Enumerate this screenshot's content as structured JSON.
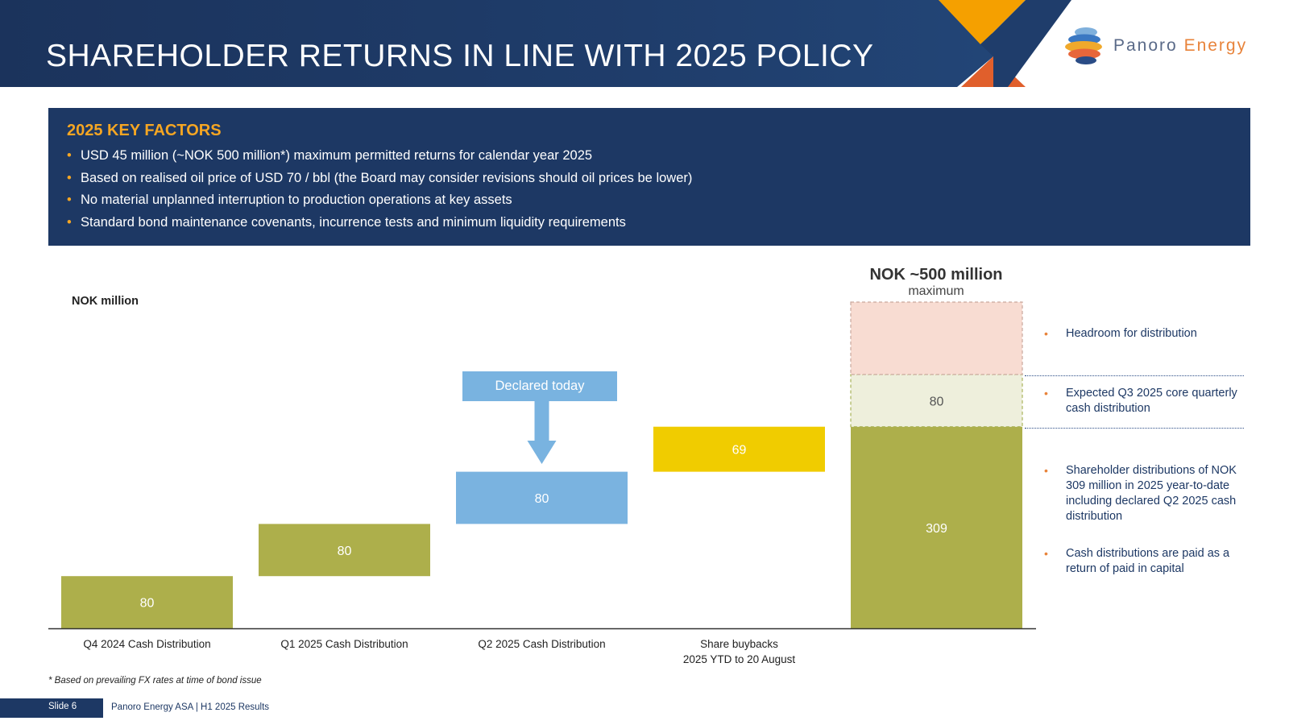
{
  "header": {
    "title": "SHAREHOLDER RETURNS IN LINE WITH 2025 POLICY",
    "logo_name": "Panoro",
    "logo_energy": "Energy"
  },
  "factors": {
    "title": "2025 KEY FACTORS",
    "bullet": "•",
    "items": [
      "USD 45 million (~NOK 500 million*) maximum permitted returns for calendar year 2025",
      "Based on realised oil price of USD 70 / bbl (the Board may consider revisions should oil prices be lower)",
      "No material unplanned interruption to production operations at key assets",
      "Standard bond maintenance covenants, incurrence tests and minimum liquidity requirements"
    ]
  },
  "chart_data": {
    "type": "bar",
    "subtype": "waterfall",
    "ylabel": "NOK million",
    "categories": [
      [
        "Q4 2024 Cash Distribution"
      ],
      [
        "Q1 2025 Cash Distribution"
      ],
      [
        "Q2 2025 Cash Distribution"
      ],
      [
        "Share buybacks",
        "2025 YTD to 20 August"
      ],
      []
    ],
    "steps": [
      {
        "value": 80,
        "base": 0,
        "label": "80",
        "color": "#adaf4b"
      },
      {
        "value": 80,
        "base": 80,
        "label": "80",
        "color": "#adaf4b"
      },
      {
        "value": 80,
        "base": 160,
        "label": "80",
        "color": "#7ab3e0"
      },
      {
        "value": 69,
        "base": 240,
        "label": "69",
        "color": "#f0cc00"
      }
    ],
    "total": {
      "segments": [
        {
          "value": 309,
          "label": "309",
          "color": "#adaf4b"
        },
        {
          "value": 80,
          "label": "80",
          "color": "#eeefdc"
        },
        {
          "value": 111,
          "label": "",
          "color": "#f8dcd2"
        }
      ],
      "max": 500,
      "max_title": "NOK ~500 million",
      "max_sub": "maximum"
    },
    "annotation": "Declared today",
    "ylim": [
      0,
      500
    ],
    "grid": false,
    "legend": "none"
  },
  "notes": {
    "bullet": "•",
    "headroom": "Headroom for distribution",
    "expected": "Expected Q3 2025 core quarterly cash distribution",
    "shareholder": "Shareholder distributions of NOK 309 million in 2025 year-to-date including declared Q2 2025 cash distribution",
    "paid": "Cash distributions are paid as a return of paid in capital"
  },
  "footer": {
    "footnote": "*  Based on prevailing FX rates at time of bond issue",
    "slide": "Slide 6",
    "text": "Panoro Energy ASA  |  H1 2025 Results"
  }
}
